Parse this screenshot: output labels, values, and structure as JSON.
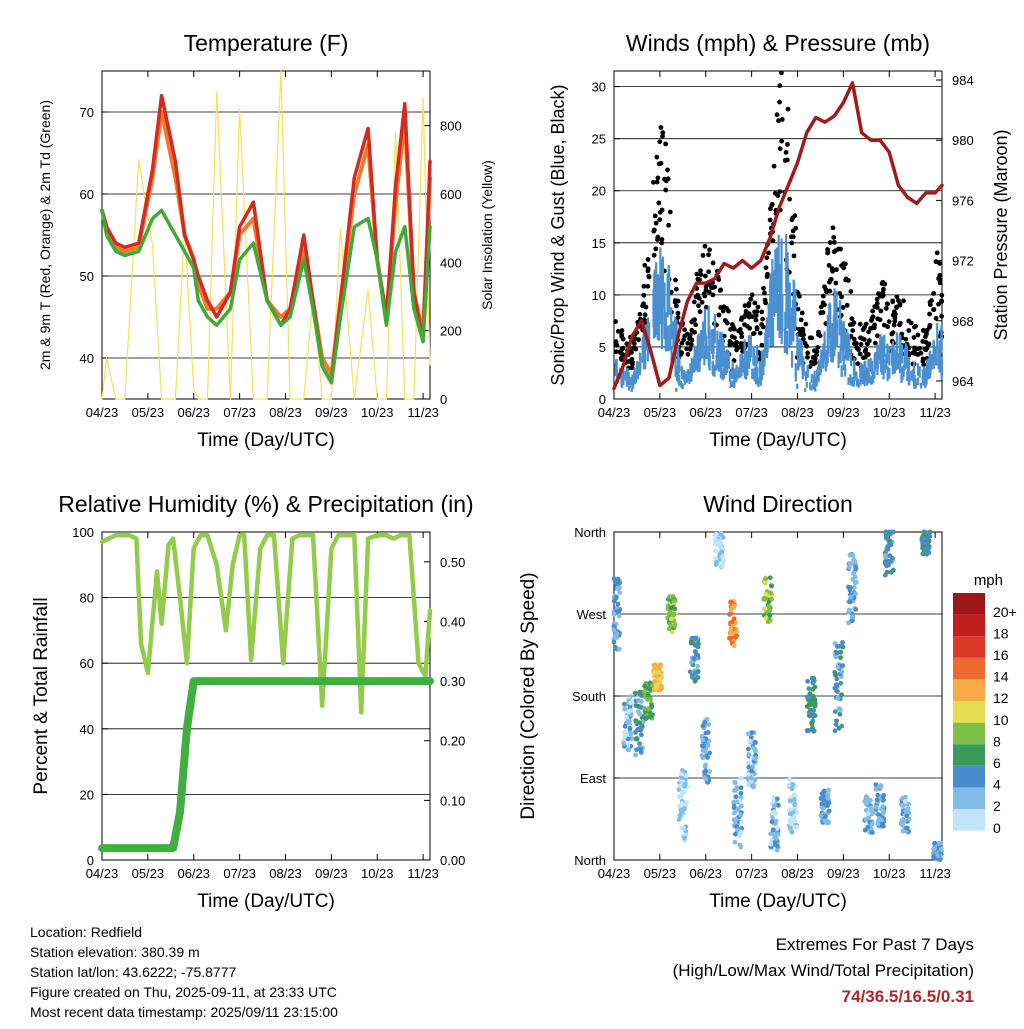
{
  "colors": {
    "temp2m": "#d42a20",
    "temp9m": "#f07a2a",
    "dewpoint": "#3faa3a",
    "solar": "#f6e05a",
    "gust": "#000000",
    "wind": "#4a90d0",
    "pressure": "#a01c1c",
    "rh": "#92cc4a",
    "precip": "#3fb040"
  },
  "x_ticks": [
    "04/23",
    "05/23",
    "06/23",
    "07/23",
    "08/23",
    "09/23",
    "10/23",
    "11/23"
  ],
  "x_label": "Time (Day/UTC)",
  "chart_data": [
    {
      "type": "line",
      "title": "Temperature (F)",
      "xlabel": "Time (Day/UTC)",
      "ylabel": "2m & 9m T (Red, Orange) & 2m Td (Green)",
      "ylabel_right": "Solar Insolation (Yellow)",
      "ylim": [
        35,
        75
      ],
      "y_ticks": [
        40,
        50,
        60,
        70
      ],
      "ylim_right": [
        0,
        960
      ],
      "y_ticks_right": [
        0,
        200,
        400,
        600,
        800
      ],
      "x": [
        0,
        0.1,
        0.3,
        0.5,
        0.8,
        1.1,
        1.3,
        1.6,
        1.8,
        2,
        2.1,
        2.3,
        2.5,
        2.8,
        3,
        3.3,
        3.6,
        3.9,
        4.1,
        4.4,
        4.6,
        4.8,
        5,
        5.2,
        5.5,
        5.8,
        6,
        6.2,
        6.4,
        6.6,
        6.8,
        7,
        7.15
      ],
      "series": [
        {
          "name": "2m T",
          "values": [
            58,
            56,
            54,
            53.5,
            54,
            63,
            72,
            64,
            55,
            52,
            50,
            47,
            45,
            48,
            56,
            59,
            47,
            44,
            46,
            55,
            47,
            39,
            37,
            47,
            62,
            68,
            52,
            45,
            61,
            71,
            48,
            42,
            64
          ]
        },
        {
          "name": "9m T",
          "values": [
            58,
            56,
            53.5,
            53,
            53.5,
            62,
            70,
            62,
            55,
            52,
            49,
            46,
            46,
            48,
            55,
            57,
            47,
            45,
            46,
            53,
            47,
            40,
            38,
            47,
            60,
            66,
            52,
            45,
            59,
            69,
            48,
            43,
            62
          ]
        },
        {
          "name": "2m Td",
          "values": [
            58,
            55,
            53,
            52.5,
            53,
            57,
            58,
            55,
            53,
            51,
            47,
            45,
            44,
            46,
            52,
            54,
            47,
            44,
            45,
            52,
            46,
            39,
            37,
            45,
            56,
            57,
            52,
            44,
            53,
            56,
            46,
            42,
            56
          ]
        },
        {
          "name": "Solar",
          "values": [
            0,
            120,
            0,
            0,
            700,
            450,
            0,
            0,
            500,
            30,
            0,
            0,
            900,
            0,
            850,
            0,
            0,
            960,
            0,
            0,
            300,
            0,
            0,
            500,
            0,
            320,
            0,
            0,
            780,
            0,
            0,
            880,
            100
          ]
        }
      ]
    },
    {
      "type": "scatter",
      "title": "Winds (mph) & Pressure (mb)",
      "xlabel": "Time (Day/UTC)",
      "ylabel": "Sonic/Prop Wind & Gust (Blue, Black)",
      "ylabel_right": "Station Pressure (Maroon)",
      "ylim": [
        0,
        31.5
      ],
      "y_ticks": [
        0,
        5,
        10,
        15,
        20,
        25,
        30
      ],
      "ylim_right": [
        962.8,
        984.6
      ],
      "y_ticks_right": [
        964,
        968,
        972,
        976,
        980,
        984
      ],
      "x": [
        0,
        0.2,
        0.4,
        0.6,
        0.8,
        1.0,
        1.2,
        1.4,
        1.6,
        1.8,
        2.0,
        2.2,
        2.4,
        2.6,
        2.8,
        3.0,
        3.2,
        3.4,
        3.6,
        3.8,
        4.0,
        4.2,
        4.4,
        4.6,
        4.8,
        5.0,
        5.2,
        5.4,
        5.6,
        5.8,
        6.0,
        6.2,
        6.4,
        6.6,
        6.8,
        7.0,
        7.15
      ],
      "series": [
        {
          "name": "Gust",
          "values": [
            6,
            5,
            4,
            8,
            14,
            22,
            16,
            6,
            5,
            9,
            12,
            10,
            7,
            5,
            7,
            8,
            6,
            16,
            24,
            20,
            8,
            5,
            4,
            10,
            14,
            11,
            6,
            5,
            6,
            9,
            7,
            8,
            6,
            5,
            5,
            11,
            9
          ]
        },
        {
          "name": "Wind",
          "values": [
            3,
            2.5,
            2,
            4,
            8,
            12,
            9,
            3,
            2,
            5,
            7,
            6,
            4,
            2,
            4,
            5,
            3,
            9,
            13,
            11,
            5,
            2.5,
            2,
            6,
            8,
            6,
            3,
            2.5,
            3,
            5,
            4,
            5,
            3,
            2.5,
            2.5,
            6,
            5
          ]
        },
        {
          "name": "Pressure",
          "values": [
            963.5,
            965,
            967,
            968,
            966,
            963.7,
            964.2,
            967,
            969.3,
            970.5,
            970.5,
            970.8,
            971.8,
            971.5,
            972,
            971.5,
            972,
            973.5,
            975.5,
            977,
            978.5,
            980.5,
            981.5,
            981.2,
            981.6,
            982.5,
            983.8,
            980.5,
            980,
            980,
            979.2,
            977,
            976.2,
            975.8,
            976.5,
            976.5,
            977
          ]
        }
      ]
    },
    {
      "type": "line",
      "title": "Relative Humidity (%) & Precipitation (in)",
      "xlabel": "Time (Day/UTC)",
      "ylabel": "Percent & Total Rainfall",
      "ylim": [
        0,
        100
      ],
      "y_ticks": [
        0,
        20,
        40,
        60,
        80,
        100
      ],
      "ylim_right": [
        0,
        0.55
      ],
      "y_ticks_right": [
        "0.00",
        "0.10",
        "0.20",
        "0.30",
        "0.40",
        "0.50"
      ],
      "x": [
        0,
        0.15,
        0.3,
        0.45,
        0.6,
        0.75,
        0.85,
        1.0,
        1.2,
        1.3,
        1.45,
        1.55,
        1.7,
        1.85,
        2.0,
        2.15,
        2.3,
        2.5,
        2.7,
        2.85,
        3.0,
        3.1,
        3.25,
        3.45,
        3.6,
        3.75,
        3.95,
        4.15,
        4.3,
        4.45,
        4.6,
        4.8,
        5.0,
        5.15,
        5.3,
        5.5,
        5.65,
        5.8,
        6.0,
        6.2,
        6.35,
        6.5,
        6.7,
        6.9,
        7.05,
        7.15
      ],
      "series": [
        {
          "name": "RH",
          "values": [
            97,
            98,
            99,
            99,
            99,
            98,
            66,
            57,
            88,
            72,
            96,
            98,
            80,
            60,
            95,
            99,
            99,
            90,
            70,
            90,
            99,
            99,
            61,
            95,
            99,
            99,
            60,
            98,
            99,
            99,
            99,
            47,
            95,
            99,
            99,
            99,
            45,
            98,
            99,
            99,
            98,
            99,
            99,
            60,
            56,
            76
          ]
        },
        {
          "name": "Precipitation",
          "values": [
            0.02,
            0.02,
            0.02,
            0.02,
            0.02,
            0.02,
            0.02,
            0.02,
            0.02,
            0.02,
            0.02,
            0.02,
            0.08,
            0.22,
            0.3,
            0.3,
            0.3,
            0.3,
            0.3,
            0.3,
            0.3,
            0.3,
            0.3,
            0.3,
            0.3,
            0.3,
            0.3,
            0.3,
            0.3,
            0.3,
            0.3,
            0.3,
            0.3,
            0.3,
            0.3,
            0.3,
            0.3,
            0.3,
            0.3,
            0.3,
            0.3,
            0.3,
            0.3,
            0.3,
            0.3,
            0.3
          ]
        }
      ]
    },
    {
      "type": "scatter",
      "title": "Wind Direction",
      "xlabel": "Time (Day/UTC)",
      "ylabel": "Direction (Colored By Speed)",
      "y_ticks": [
        "North",
        "East",
        "South",
        "West",
        "North"
      ],
      "ylim": [
        0,
        360
      ],
      "legend_title": "mph",
      "legend_labels": [
        "0",
        "2",
        "4",
        "6",
        "8",
        "10",
        "12",
        "14",
        "16",
        "18",
        "20+"
      ],
      "legend_colors": [
        "#bfe6f8",
        "#80bce6",
        "#4a8ccb",
        "#3a9a5a",
        "#7cc04a",
        "#e6dc50",
        "#f8ac48",
        "#ec6a2e",
        "#dc3828",
        "#c2201e",
        "#9c1818"
      ],
      "legend_placement": "right",
      "clusters": [
        {
          "x": 0.05,
          "dir": 270,
          "spread": 40,
          "speed": 3
        },
        {
          "x": 0.3,
          "dir": 150,
          "spread": 30,
          "speed": 2
        },
        {
          "x": 0.55,
          "dir": 150,
          "spread": 35,
          "speed": 4
        },
        {
          "x": 0.75,
          "dir": 175,
          "spread": 20,
          "speed": 7
        },
        {
          "x": 0.95,
          "dir": 200,
          "spread": 15,
          "speed": 11
        },
        {
          "x": 1.25,
          "dir": 270,
          "spread": 20,
          "speed": 8
        },
        {
          "x": 1.5,
          "dir": 60,
          "spread": 40,
          "speed": 1
        },
        {
          "x": 1.75,
          "dir": 220,
          "spread": 25,
          "speed": 4
        },
        {
          "x": 2.0,
          "dir": 120,
          "spread": 35,
          "speed": 3
        },
        {
          "x": 2.3,
          "dir": 340,
          "spread": 20,
          "speed": 1
        },
        {
          "x": 2.6,
          "dir": 260,
          "spread": 25,
          "speed": 13
        },
        {
          "x": 2.7,
          "dir": 50,
          "spread": 40,
          "speed": 2
        },
        {
          "x": 3.0,
          "dir": 110,
          "spread": 30,
          "speed": 2
        },
        {
          "x": 3.35,
          "dir": 285,
          "spread": 25,
          "speed": 8
        },
        {
          "x": 3.5,
          "dir": 40,
          "spread": 30,
          "speed": 2
        },
        {
          "x": 3.9,
          "dir": 60,
          "spread": 30,
          "speed": 1
        },
        {
          "x": 4.3,
          "dir": 170,
          "spread": 30,
          "speed": 5
        },
        {
          "x": 4.6,
          "dir": 60,
          "spread": 20,
          "speed": 3
        },
        {
          "x": 4.9,
          "dir": 190,
          "spread": 50,
          "speed": 4
        },
        {
          "x": 5.2,
          "dir": 300,
          "spread": 40,
          "speed": 3
        },
        {
          "x": 5.55,
          "dir": 50,
          "spread": 20,
          "speed": 2
        },
        {
          "x": 5.8,
          "dir": 60,
          "spread": 25,
          "speed": 3
        },
        {
          "x": 6.0,
          "dir": 340,
          "spread": 30,
          "speed": 4
        },
        {
          "x": 6.35,
          "dir": 50,
          "spread": 20,
          "speed": 2
        },
        {
          "x": 6.8,
          "dir": 350,
          "spread": 15,
          "speed": 5
        },
        {
          "x": 7.05,
          "dir": 10,
          "spread": 10,
          "speed": 3
        }
      ]
    }
  ],
  "footer": {
    "location": "Location: Redfield",
    "elevation": "Station elevation: 380.39 m",
    "latlon": "Station lat/lon: 43.6222; -75.8777",
    "created": "Figure created on Thu, 2025-09-11, at 23:33 UTC",
    "timestamp": "Most recent data timestamp: 2025/09/11 23:15:00"
  },
  "extremes": {
    "title": "Extremes For Past 7 Days",
    "subtitle": "(High/Low/Max Wind/Total Precipitation)",
    "values": "74/36.5/16.5/0.31"
  }
}
